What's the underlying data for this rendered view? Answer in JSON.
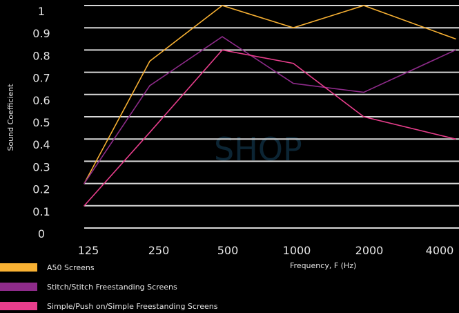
{
  "chart_data": {
    "type": "line",
    "title": "",
    "xlabel": "Frequency, F (Hz)",
    "ylabel": "Sound Coefficient",
    "categories": [
      "125",
      "250",
      "500",
      "1000",
      "2000",
      "4000"
    ],
    "ylim": [
      0,
      1
    ],
    "yticks": [
      "0",
      "0.1",
      "0.2",
      "0.3",
      "0.4",
      "0.5",
      "0.6",
      "0.7",
      "0.8",
      "0.9",
      "1"
    ],
    "grid": "horizontal",
    "legend_position": "bottom-left",
    "series": [
      {
        "name": "A50 Screens",
        "color": "#f8b133",
        "values": [
          0.2,
          0.75,
          1.0,
          0.9,
          1.0,
          0.85
        ]
      },
      {
        "name": "Stitch/Stitch Freestanding Screens",
        "color": "#8e2b8a",
        "values": [
          0.2,
          0.64,
          0.86,
          0.65,
          0.61,
          0.8
        ]
      },
      {
        "name": "Simple/Push on/Simple Freestanding Screens",
        "color": "#e83e8c",
        "values": [
          0.1,
          0.43,
          0.8,
          0.74,
          0.5,
          0.4
        ]
      }
    ]
  },
  "watermark": "SHOP"
}
